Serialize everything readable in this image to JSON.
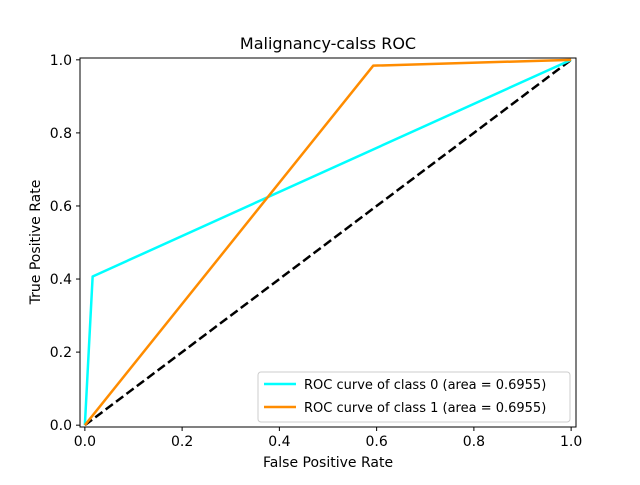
{
  "chart_data": {
    "type": "line",
    "title": "Malignancy-calss ROC",
    "xlabel": "False Positive Rate",
    "ylabel": "True Positive Rate",
    "xlim": [
      -0.01,
      1.01
    ],
    "ylim": [
      -0.005,
      1.005
    ],
    "x_ticks": [
      0.0,
      0.2,
      0.4,
      0.6,
      0.8,
      1.0
    ],
    "y_ticks": [
      0.0,
      0.2,
      0.4,
      0.6,
      0.8,
      1.0
    ],
    "x_tick_labels": [
      "0.0",
      "0.2",
      "0.4",
      "0.6",
      "0.8",
      "1.0"
    ],
    "y_tick_labels": [
      "0.0",
      "0.2",
      "0.4",
      "0.6",
      "0.8",
      "1.0"
    ],
    "grid": false,
    "legend_position": "lower-right",
    "series": [
      {
        "name": "ROC curve of class 0 (area = 0.6955)",
        "color": "#00ffff",
        "dashed": false,
        "x": [
          0.0,
          0.016,
          1.0
        ],
        "y": [
          0.0,
          0.407,
          1.0
        ]
      },
      {
        "name": "ROC curve of class 1 (area = 0.6955)",
        "color": "#ff8c00",
        "dashed": false,
        "x": [
          0.0,
          0.593,
          1.0
        ],
        "y": [
          0.0,
          0.984,
          1.0
        ]
      },
      {
        "name": "",
        "color": "#000000",
        "dashed": true,
        "x": [
          0.0,
          1.0
        ],
        "y": [
          0.0,
          1.0
        ]
      }
    ]
  }
}
